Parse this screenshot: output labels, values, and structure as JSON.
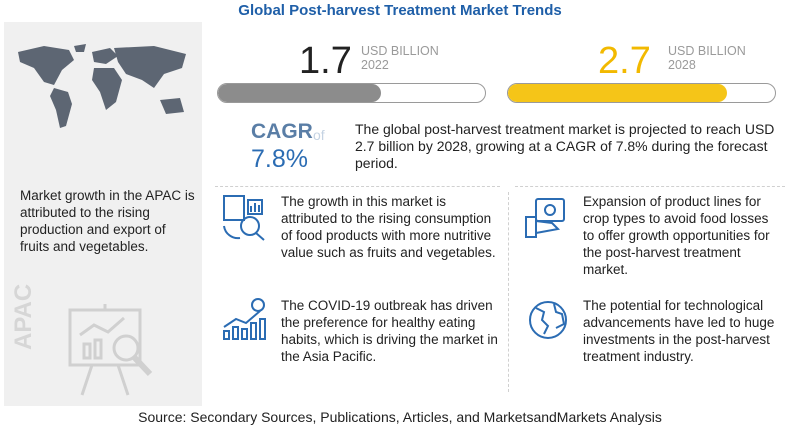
{
  "title": "Global Post-harvest Treatment Market Trends",
  "left_panel": {
    "text": "Market growth in the APAC is attributed to the rising production and export of fruits and vegetables.",
    "region_label": "APAC"
  },
  "market_size": [
    {
      "value": "1.7",
      "unit": "USD BILLION",
      "year": "2022"
    },
    {
      "value": "2.7",
      "unit": "USD BILLION",
      "year": "2028"
    }
  ],
  "cagr": {
    "label": "CAGR",
    "of": "of",
    "value": "7.8%"
  },
  "summary": "The global post-harvest treatment market is projected to reach USD 2.7 billion by 2028, growing at a CAGR of 7.8% during the forecast period.",
  "insights": [
    "The growth in this market is attributed to the rising consumption of food products with more nutritive value such as fruits and vegetables.",
    "Expansion of product lines for crop types to avoid food losses to offer growth opportunities for the post-harvest treatment market.",
    "The COVID-19 outbreak has driven the preference for healthy eating habits, which is driving the market in the Asia Pacific.",
    "The potential for technological advancements have led to huge investments in the post-harvest treatment industry."
  ],
  "source": "Source: Secondary Sources, Publications, Articles, and MarketsandMarkets Analysis"
}
